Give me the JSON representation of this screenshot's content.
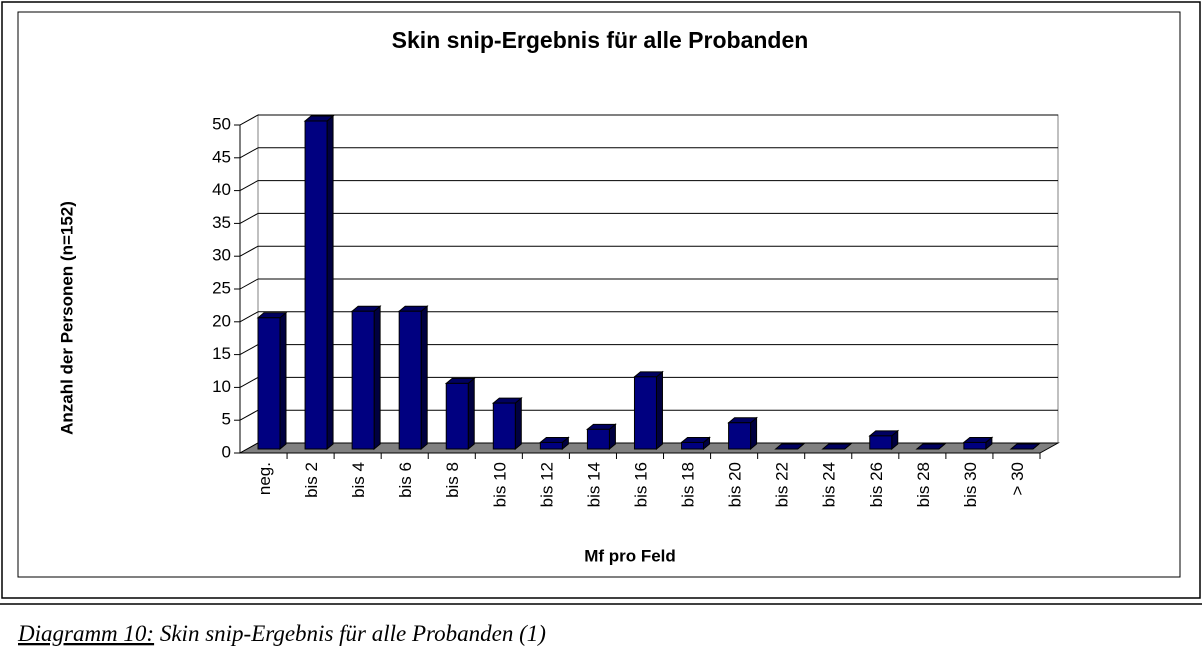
{
  "chart_data": {
    "type": "bar",
    "title": "Skin snip-Ergebnis für alle Probanden",
    "x_label": "Mf pro Feld",
    "y_label": "Anzahl der Personen (n=152)",
    "categories": [
      "neg.",
      "bis 2",
      "bis 4",
      "bis 6",
      "bis 8",
      "bis 10",
      "bis 12",
      "bis 14",
      "bis 16",
      "bis 18",
      "bis 20",
      "bis 22",
      "bis 24",
      "bis 26",
      "bis 28",
      "bis 30",
      "> 30"
    ],
    "values": [
      20,
      50,
      21,
      21,
      10,
      7,
      1,
      3,
      11,
      1,
      4,
      0,
      0,
      2,
      0,
      1,
      0
    ],
    "color": "#000080",
    "ylim": [
      0,
      50
    ],
    "yticks": [
      0,
      5,
      10,
      15,
      20,
      25,
      30,
      35,
      40,
      45,
      50
    ],
    "grid": true
  },
  "caption": {
    "label": "Diagramm 10:",
    "text": " Skin snip-Ergebnis für alle Probanden (1)"
  }
}
